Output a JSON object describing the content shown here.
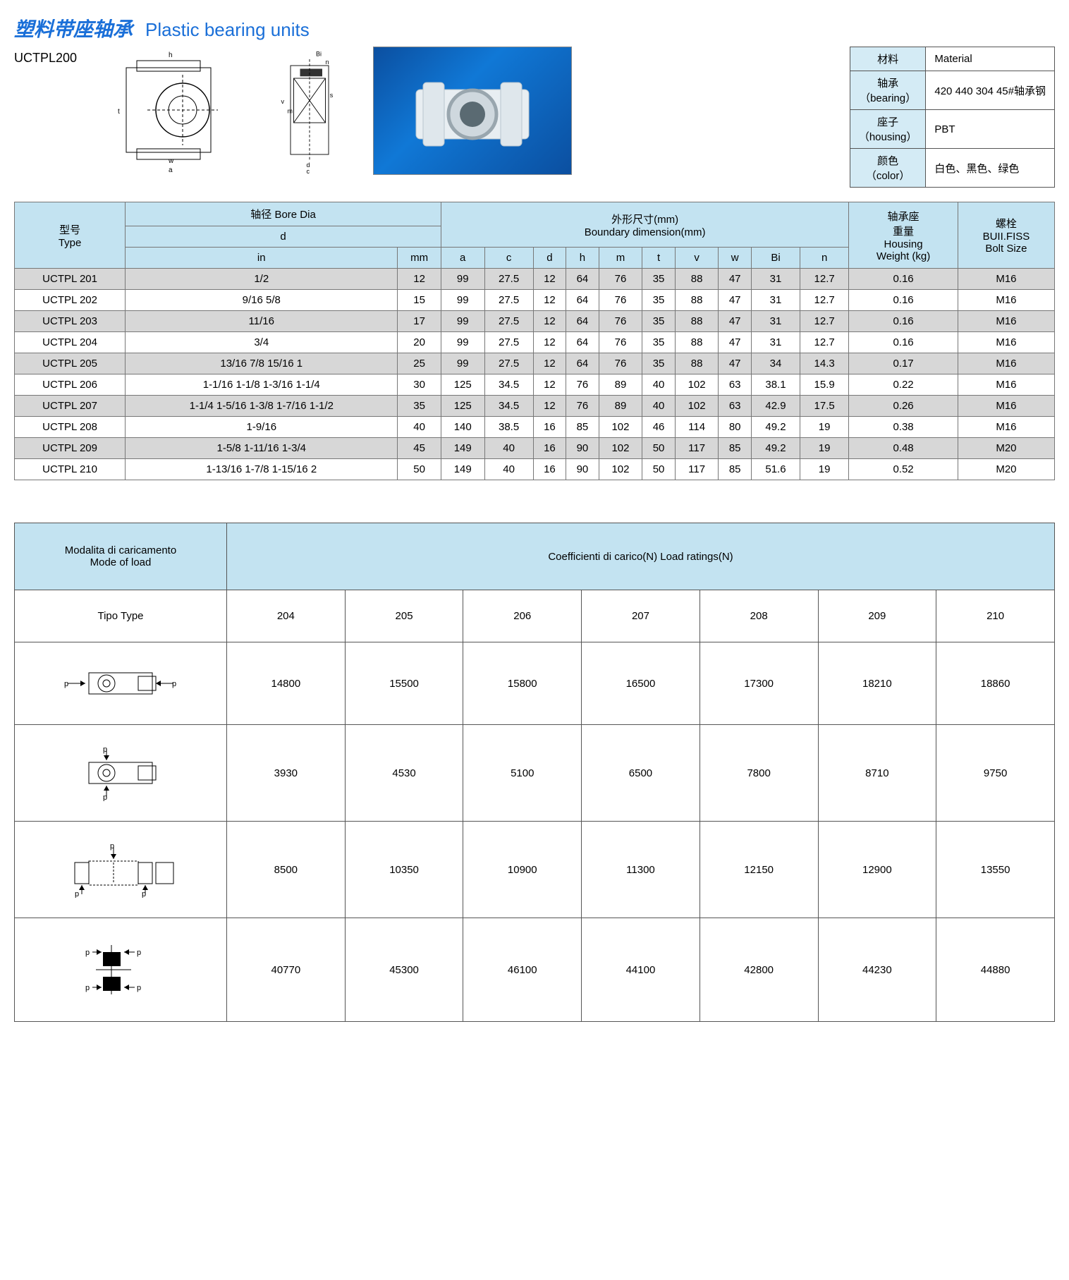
{
  "title": {
    "cn": "塑料带座轴承",
    "en": "Plastic bearing units"
  },
  "model": "UCTPL200",
  "material_table": {
    "rows": [
      {
        "cn": "材料",
        "en": "Material",
        "val": ""
      },
      {
        "cn": "轴承",
        "sub": "（bearing）",
        "val": "420 440 304  45#轴承钢"
      },
      {
        "cn": "座子",
        "sub": "（housing）",
        "val": "PBT"
      },
      {
        "cn": "颜色",
        "sub": "（color）",
        "val": "白色、黑色、绿色"
      }
    ]
  },
  "spec_table": {
    "headers": {
      "type": {
        "l1": "型号",
        "l2": "Type"
      },
      "bore": {
        "l1": "轴径 Bore Dia",
        "l2": "d"
      },
      "in": "in",
      "mm": "mm",
      "boundary": {
        "l1": "外形尺寸(mm)",
        "l2": "Boundary dimension(mm)"
      },
      "dims": [
        "a",
        "c",
        "d",
        "h",
        "m",
        "t",
        "v",
        "w",
        "Bi",
        "n"
      ],
      "weight": {
        "l1": "轴承座",
        "l2": "重量",
        "l3": "Housing",
        "l4": "Weight (kg)"
      },
      "bolt": {
        "l1": "螺栓",
        "l2": "BUII.FISS",
        "l3": "Bolt Size"
      }
    },
    "rows": [
      {
        "type": "UCTPL 201",
        "in": "1/2",
        "mm": "12",
        "a": "99",
        "c": "27.5",
        "d": "12",
        "h": "64",
        "m": "76",
        "t": "35",
        "v": "88",
        "w": "47",
        "bi": "31",
        "n": "12.7",
        "wt": "0.16",
        "bolt": "M16"
      },
      {
        "type": "UCTPL 202",
        "in": "9/16  5/8",
        "mm": "15",
        "a": "99",
        "c": "27.5",
        "d": "12",
        "h": "64",
        "m": "76",
        "t": "35",
        "v": "88",
        "w": "47",
        "bi": "31",
        "n": "12.7",
        "wt": "0.16",
        "bolt": "M16"
      },
      {
        "type": "UCTPL 203",
        "in": "11/16",
        "mm": "17",
        "a": "99",
        "c": "27.5",
        "d": "12",
        "h": "64",
        "m": "76",
        "t": "35",
        "v": "88",
        "w": "47",
        "bi": "31",
        "n": "12.7",
        "wt": "0.16",
        "bolt": "M16"
      },
      {
        "type": "UCTPL 204",
        "in": "3/4",
        "mm": "20",
        "a": "99",
        "c": "27.5",
        "d": "12",
        "h": "64",
        "m": "76",
        "t": "35",
        "v": "88",
        "w": "47",
        "bi": "31",
        "n": "12.7",
        "wt": "0.16",
        "bolt": "M16"
      },
      {
        "type": "UCTPL 205",
        "in": "13/16  7/8  15/16  1",
        "mm": "25",
        "a": "99",
        "c": "27.5",
        "d": "12",
        "h": "64",
        "m": "76",
        "t": "35",
        "v": "88",
        "w": "47",
        "bi": "34",
        "n": "14.3",
        "wt": "0.17",
        "bolt": "M16"
      },
      {
        "type": "UCTPL 206",
        "in": "1-1/16  1-1/8  1-3/16  1-1/4",
        "mm": "30",
        "a": "125",
        "c": "34.5",
        "d": "12",
        "h": "76",
        "m": "89",
        "t": "40",
        "v": "102",
        "w": "63",
        "bi": "38.1",
        "n": "15.9",
        "wt": "0.22",
        "bolt": "M16"
      },
      {
        "type": "UCTPL 207",
        "in": "1-1/4  1-5/16  1-3/8  1-7/16  1-1/2",
        "mm": "35",
        "a": "125",
        "c": "34.5",
        "d": "12",
        "h": "76",
        "m": "89",
        "t": "40",
        "v": "102",
        "w": "63",
        "bi": "42.9",
        "n": "17.5",
        "wt": "0.26",
        "bolt": "M16"
      },
      {
        "type": "UCTPL 208",
        "in": "1-9/16",
        "mm": "40",
        "a": "140",
        "c": "38.5",
        "d": "16",
        "h": "85",
        "m": "102",
        "t": "46",
        "v": "114",
        "w": "80",
        "bi": "49.2",
        "n": "19",
        "wt": "0.38",
        "bolt": "M16"
      },
      {
        "type": "UCTPL 209",
        "in": "1-5/8  1-11/16  1-3/4",
        "mm": "45",
        "a": "149",
        "c": "40",
        "d": "16",
        "h": "90",
        "m": "102",
        "t": "50",
        "v": "117",
        "w": "85",
        "bi": "49.2",
        "n": "19",
        "wt": "0.48",
        "bolt": "M20"
      },
      {
        "type": "UCTPL 210",
        "in": "1-13/16  1-7/8  1-15/16  2",
        "mm": "50",
        "a": "149",
        "c": "40",
        "d": "16",
        "h": "90",
        "m": "102",
        "t": "50",
        "v": "117",
        "w": "85",
        "bi": "51.6",
        "n": "19",
        "wt": "0.52",
        "bolt": "M20"
      }
    ]
  },
  "load_table": {
    "mode_header": {
      "l1": "Modalita di caricamento",
      "l2": "Mode of load"
    },
    "coeff_header": "Coefficienti di carico(N) Load ratings(N)",
    "type_label": "Tipo Type",
    "types": [
      "204",
      "205",
      "206",
      "207",
      "208",
      "209",
      "210"
    ],
    "rows": [
      {
        "dia": "axial",
        "vals": [
          "14800",
          "15500",
          "15800",
          "16500",
          "17300",
          "18210",
          "18860"
        ]
      },
      {
        "dia": "radial-vert",
        "vals": [
          "3930",
          "4530",
          "5100",
          "6500",
          "7800",
          "8710",
          "9750"
        ]
      },
      {
        "dia": "side-3p",
        "vals": [
          "8500",
          "10350",
          "10900",
          "11300",
          "12150",
          "12900",
          "13550"
        ]
      },
      {
        "dia": "top-4p",
        "vals": [
          "40770",
          "45300",
          "46100",
          "44100",
          "42800",
          "44230",
          "44880"
        ]
      }
    ]
  }
}
